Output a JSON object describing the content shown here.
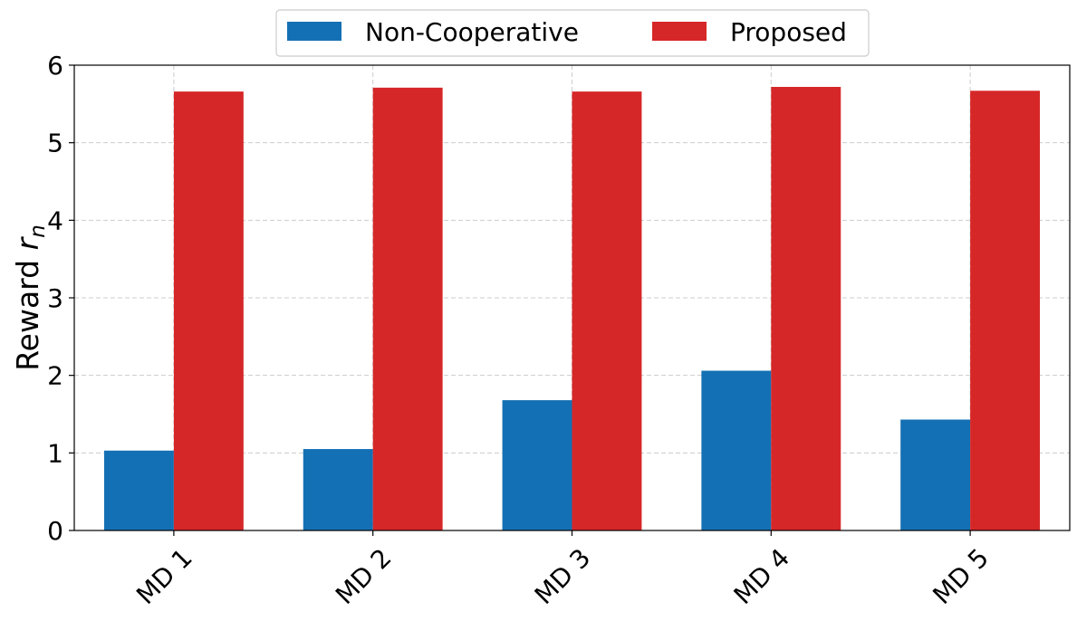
{
  "chart_data": {
    "type": "bar",
    "categories": [
      "MD 1",
      "MD 2",
      "MD 3",
      "MD 4",
      "MD 5"
    ],
    "series": [
      {
        "name": "Non-Cooperative",
        "color": "#1470b4",
        "values": [
          1.03,
          1.05,
          1.68,
          2.06,
          1.43
        ]
      },
      {
        "name": "Proposed",
        "color": "#d62728",
        "values": [
          5.66,
          5.71,
          5.66,
          5.72,
          5.67
        ]
      }
    ],
    "title": "",
    "xlabel": "",
    "ylabel": "Reward",
    "ylabel_symbol": "r",
    "ylabel_subscript": "n",
    "ylim": [
      0,
      6
    ],
    "yticks": [
      "0",
      "1",
      "2",
      "3",
      "4",
      "5",
      "6"
    ],
    "grid": true,
    "legend_position": "top-center, above plot"
  }
}
